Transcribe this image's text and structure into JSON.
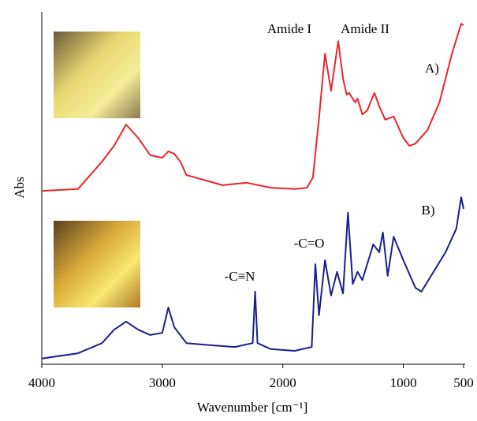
{
  "chart_data": {
    "type": "line",
    "x_label": "Wavenumber [cm⁻¹]",
    "y_label": "Abs",
    "xlim": [
      4000,
      500
    ],
    "xticks": [
      4000,
      3000,
      2000,
      1000,
      500
    ],
    "ylim": [
      0,
      100
    ],
    "annotations": [
      "Amide I",
      "Amide II",
      "-C≡N",
      "-C=O"
    ],
    "series": [
      {
        "name": "A)",
        "color": "#e8262a",
        "x": [
          4000,
          3700,
          3500,
          3400,
          3300,
          3200,
          3100,
          3000,
          2950,
          2900,
          2850,
          2800,
          2500,
          2300,
          2100,
          1900,
          1800,
          1750,
          1700,
          1650,
          1600,
          1540,
          1500,
          1470,
          1450,
          1400,
          1380,
          1340,
          1300,
          1240,
          1200,
          1150,
          1080,
          1000,
          950,
          900,
          800,
          700,
          600,
          520,
          500
        ],
        "values": [
          49.2,
          49.7,
          57.5,
          62,
          68,
          64.2,
          59.3,
          58.6,
          60.4,
          59.7,
          57.5,
          53.7,
          50.8,
          51.5,
          50.1,
          49.7,
          50.1,
          53,
          69.8,
          88.1,
          77.6,
          91.7,
          81,
          76.5,
          77,
          74.3,
          75.4,
          70.9,
          72,
          77,
          73.2,
          69.4,
          70.3,
          64.2,
          62,
          62.6,
          66.4,
          74.3,
          87.7,
          96.6,
          96.2
        ]
      },
      {
        "name": "B)",
        "color": "#1a1f8c",
        "x": [
          4000,
          3700,
          3500,
          3400,
          3300,
          3200,
          3100,
          3000,
          2950,
          2900,
          2800,
          2600,
          2400,
          2250,
          2230,
          2210,
          2100,
          1900,
          1760,
          1730,
          1700,
          1650,
          1600,
          1550,
          1500,
          1460,
          1420,
          1380,
          1340,
          1250,
          1200,
          1170,
          1130,
          1080,
          1000,
          900,
          850,
          750,
          650,
          560,
          520,
          500
        ],
        "values": [
          1.6,
          3.1,
          6,
          9.8,
          12.1,
          9.8,
          8.3,
          8.9,
          16.1,
          10.5,
          6,
          5.4,
          4.9,
          6,
          20.6,
          6,
          4.3,
          3.8,
          4.9,
          28.4,
          13.9,
          29.5,
          19.5,
          26.2,
          20.1,
          43,
          22.8,
          26.2,
          23.9,
          34,
          31.8,
          37.4,
          25.1,
          36.2,
          29.5,
          21.7,
          20.6,
          26.2,
          31.8,
          38.5,
          47.4,
          44.1
        ]
      }
    ]
  }
}
